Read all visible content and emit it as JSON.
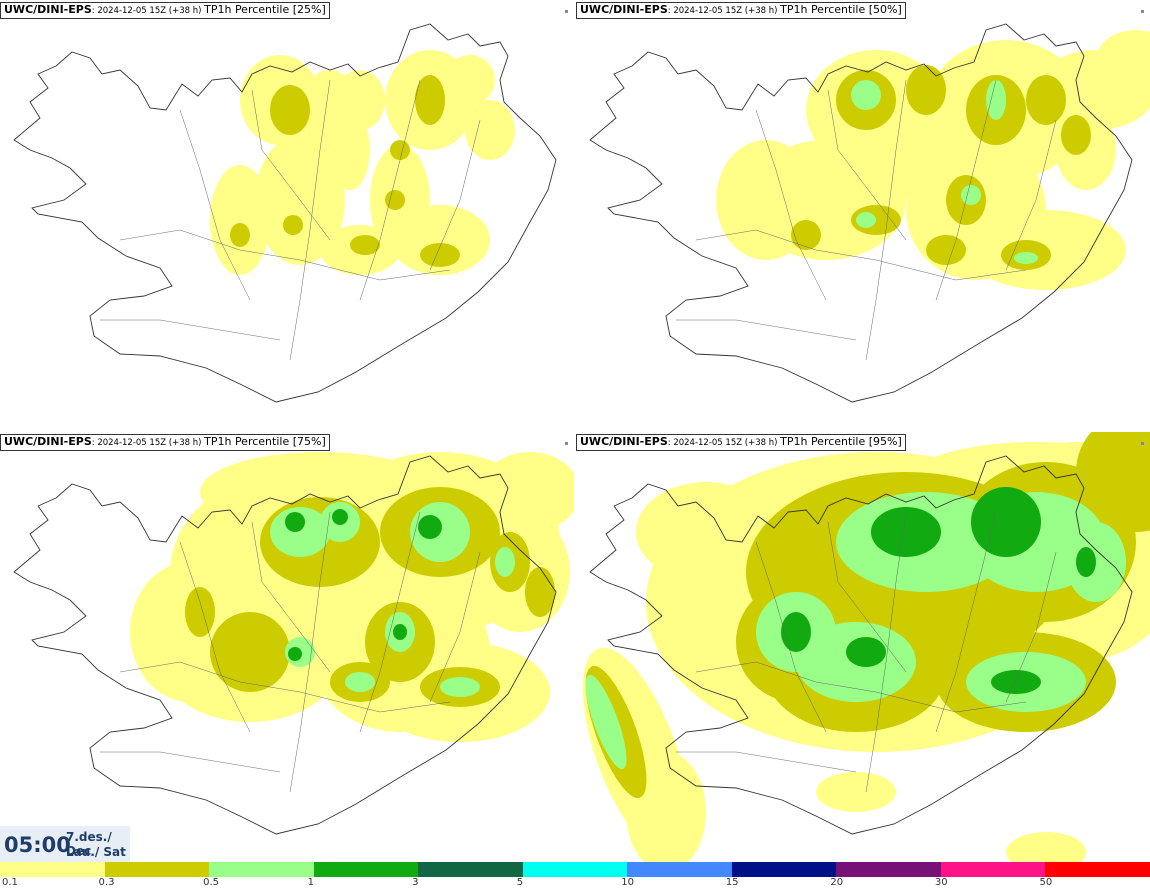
{
  "panels": [
    {
      "model": "UWC/DINI-EPS",
      "run": ": 2024-12-05 15Z (+38 h) ",
      "product": "TP1h Percentile [25%]"
    },
    {
      "model": "UWC/DINI-EPS",
      "run": ": 2024-12-05 15Z (+38 h) ",
      "product": "TP1h Percentile [50%]"
    },
    {
      "model": "UWC/DINI-EPS",
      "run": ": 2024-12-05 15Z (+38 h) ",
      "product": "TP1h Percentile [75%]"
    },
    {
      "model": "UWC/DINI-EPS",
      "run": ": 2024-12-05 15Z (+38 h) ",
      "product": "TP1h Percentile [95%]"
    }
  ],
  "valid_time": {
    "time": "05:00",
    "date": "7.des./ Dec",
    "weekday": "Lau./ Sat"
  },
  "legend": {
    "colors": [
      "#ffff88",
      "#cccc00",
      "#99ff88",
      "#11aa11",
      "#116644",
      "#00ffee",
      "#4488ff",
      "#001188",
      "#771177",
      "#ff1188",
      "#ff0000"
    ],
    "ticks": [
      "0.1",
      "0.3",
      "0.5",
      "1",
      "3",
      "5",
      "10",
      "15",
      "20",
      "30",
      "50"
    ]
  }
}
